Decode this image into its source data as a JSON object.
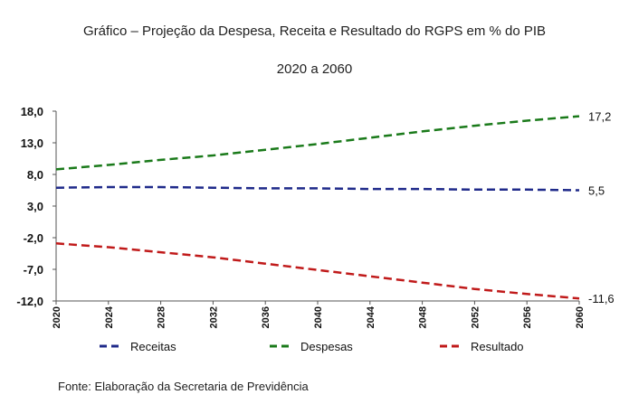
{
  "title_line1": "Gráfico – Projeção da Despesa, Receita e Resultado  do RGPS em % do PIB",
  "title_line2": "2020 a 2060",
  "source": "Fonte: Elaboração da Secretaria de Previdência",
  "colors": {
    "receitas": "#1f2a8a",
    "despesas": "#1a7a1a",
    "resultado": "#c01a1a",
    "axis": "#555555"
  },
  "chart_data": {
    "type": "line",
    "title": "Gráfico – Projeção da Despesa, Receita e Resultado  do RGPS em % do PIB",
    "subtitle": "2020 a 2060",
    "x_ticks": [
      "2020",
      "2024",
      "2028",
      "2032",
      "2036",
      "2040",
      "2044",
      "2048",
      "2052",
      "2056",
      "2060"
    ],
    "y_ticks": [
      "18,0",
      "13,0",
      "8,0",
      "3,0",
      "-2,0",
      "-7,0",
      "-12,0"
    ],
    "ylim": [
      -12,
      18
    ],
    "xlim": [
      2020,
      2060
    ],
    "grid": false,
    "legend_position": "bottom",
    "series": [
      {
        "name": "Receitas",
        "color_key": "receitas",
        "x": [
          2020,
          2024,
          2028,
          2032,
          2036,
          2040,
          2044,
          2048,
          2052,
          2056,
          2060
        ],
        "values": [
          5.9,
          6.0,
          6.0,
          5.9,
          5.8,
          5.8,
          5.7,
          5.7,
          5.6,
          5.6,
          5.5
        ],
        "end_label": "5,5"
      },
      {
        "name": "Despesas",
        "color_key": "despesas",
        "x": [
          2020,
          2024,
          2028,
          2032,
          2036,
          2040,
          2044,
          2048,
          2052,
          2056,
          2060
        ],
        "values": [
          8.8,
          9.5,
          10.3,
          11.0,
          11.9,
          12.8,
          13.8,
          14.8,
          15.7,
          16.5,
          17.2
        ],
        "end_label": "17,2"
      },
      {
        "name": "Resultado",
        "color_key": "resultado",
        "x": [
          2020,
          2024,
          2028,
          2032,
          2036,
          2040,
          2044,
          2048,
          2052,
          2056,
          2060
        ],
        "values": [
          -2.9,
          -3.5,
          -4.3,
          -5.1,
          -6.1,
          -7.1,
          -8.1,
          -9.1,
          -10.1,
          -10.9,
          -11.6
        ],
        "end_label": "-11,6"
      }
    ]
  }
}
